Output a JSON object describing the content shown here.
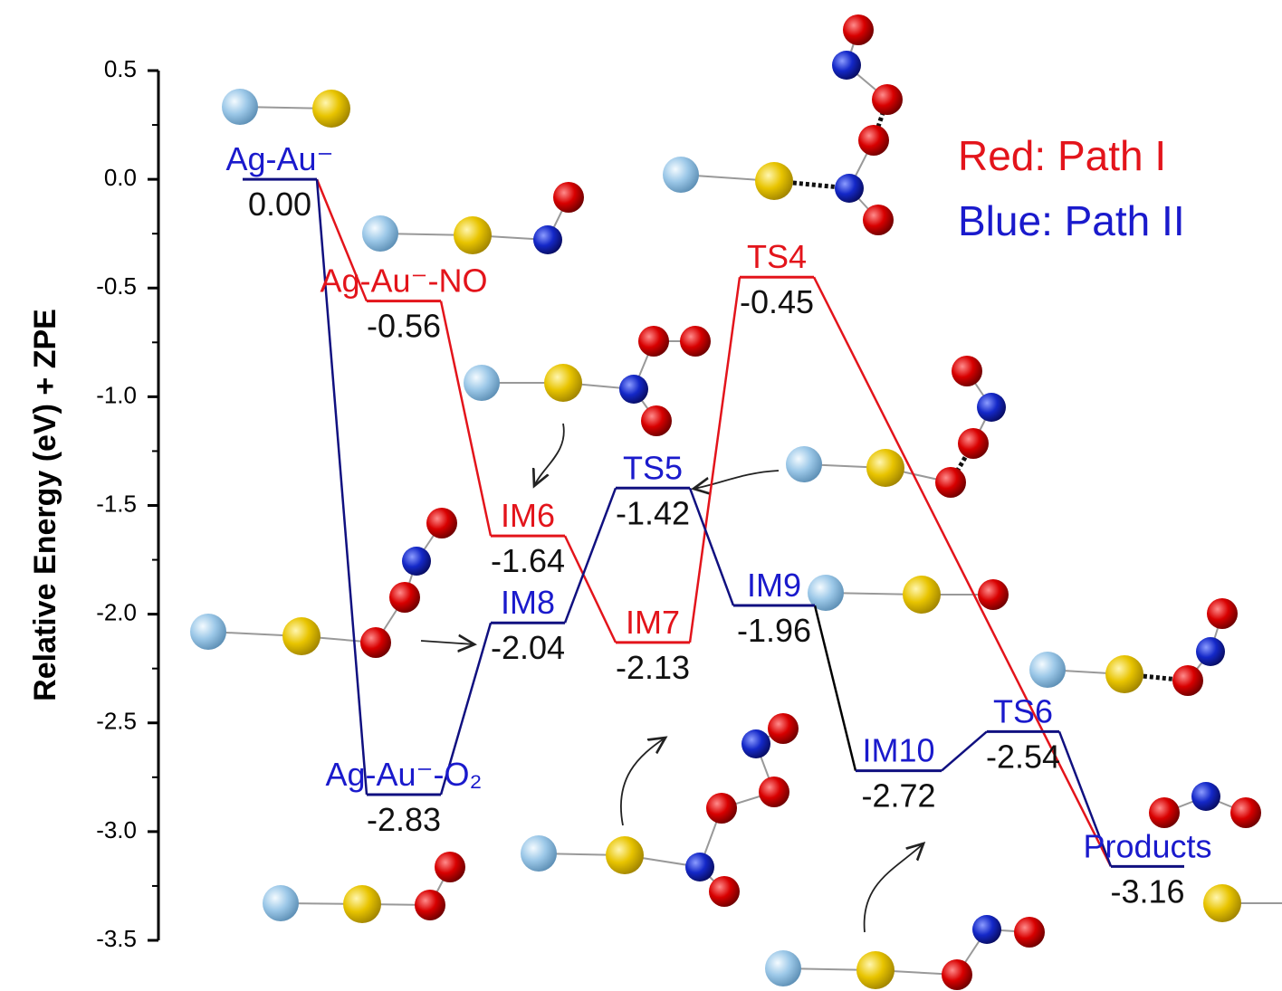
{
  "chart_data": {
    "type": "energy",
    "ylabel": "Relative Energy (eV) + ZPE",
    "ylim": [
      -3.5,
      0.5
    ],
    "yticks": [
      0.5,
      {
        "value": 0,
        "label": "0.0"
      },
      -0.5,
      {
        "value": -1,
        "label": "-1.0"
      },
      -1.5,
      {
        "value": -2,
        "label": "-2.0"
      },
      -2.5,
      {
        "value": -3,
        "label": "-3.0"
      },
      -3.5
    ],
    "categories": [
      "Ag-Au⁻",
      "Ag-Au⁻-NO",
      "Ag-Au⁻-O₂",
      "IM6",
      "IM8",
      "TS5",
      "IM7",
      "TS4",
      "IM9",
      "IM10",
      "TS6",
      "Products"
    ],
    "values": [
      0,
      -0.56,
      -2.83,
      -1.64,
      -2.04,
      -1.42,
      -2.13,
      -0.45,
      -1.96,
      -2.72,
      -2.54,
      -3.16
    ],
    "value_labels": [
      "0.00",
      "-0.56",
      "-2.83",
      "-1.64",
      "-2.04",
      "-1.42",
      "-2.13",
      "-0.45",
      "-1.96",
      "-2.72",
      "-2.54",
      "-3.16"
    ],
    "colors": [
      "#1a1acc",
      "#e3141b",
      "#1a1acc",
      "#e3141b",
      "#1a1acc",
      "#1a1acc",
      "#e3141b",
      "#e3141b",
      "#1a1acc",
      "#1a1acc",
      "#1a1acc",
      "#1a1acc"
    ],
    "legend": [
      {
        "text": "Red: Path I",
        "color": "#e3141b"
      },
      {
        "text": "Blue: Path II",
        "color": "#1a1acc"
      }
    ]
  }
}
